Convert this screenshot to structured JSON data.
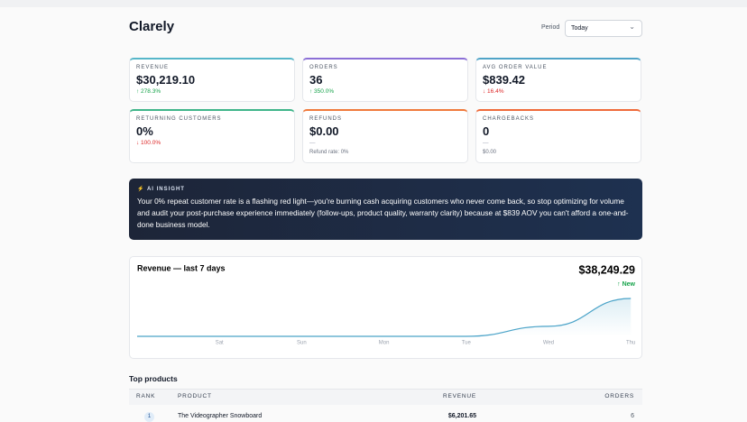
{
  "header": {
    "title": "Clarely",
    "period_label": "Period",
    "period_value": "Today"
  },
  "metrics": [
    {
      "label": "REVENUE",
      "value": "$30,219.10",
      "change": "↑ 278.3%",
      "change_color": "#16a34a",
      "accent": "#56b6c9"
    },
    {
      "label": "ORDERS",
      "value": "36",
      "change": "↑ 350.0%",
      "change_color": "#16a34a",
      "accent": "#8b6fd6"
    },
    {
      "label": "AVG ORDER VALUE",
      "value": "$839.42",
      "change": "↓ 16.4%",
      "change_color": "#dc2626",
      "accent": "#4fa3c7"
    },
    {
      "label": "RETURNING CUSTOMERS",
      "value": "0%",
      "change": "↓ 100.0%",
      "change_color": "#dc2626",
      "accent": "#3fb58a"
    },
    {
      "label": "REFUNDS",
      "value": "$0.00",
      "change": "—",
      "change_color": "#9ca3af",
      "note": "Refund rate: 0%",
      "accent": "#f07a3c"
    },
    {
      "label": "CHARGEBACKS",
      "value": "0",
      "change": "—",
      "change_color": "#9ca3af",
      "note": "$0.00",
      "accent": "#ef6a3a"
    }
  ],
  "insight": {
    "label": "AI INSIGHT",
    "text": "Your 0% repeat customer rate is a flashing red light—you're burning cash acquiring customers who never come back, so stop optimizing for volume and audit your post-purchase experience immediately (follow-ups, product quality, warranty clarity) because at $839 AOV you can't afford a one-and-done business model."
  },
  "revenue_chart": {
    "type": "line",
    "title": "Revenue — last 7 days",
    "total": "$38,249.29",
    "badge": "↑ New",
    "x": [
      null,
      "Sat",
      "Sun",
      "Mon",
      "Tue",
      "Wed",
      "Thu"
    ],
    "values": [
      0,
      0,
      0,
      0,
      0,
      8030.19,
      30219.1
    ],
    "color": "#4aa3c8"
  },
  "top_products": {
    "title": "Top products",
    "columns": [
      "RANK",
      "PRODUCT",
      "REVENUE",
      "ORDERS"
    ],
    "rows": [
      [
        "1",
        "The Videographer Snowboard",
        "$6,201.65",
        "6"
      ]
    ]
  }
}
